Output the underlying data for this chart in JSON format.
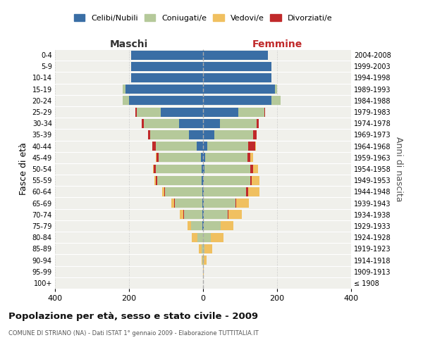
{
  "age_groups": [
    "100+",
    "95-99",
    "90-94",
    "85-89",
    "80-84",
    "75-79",
    "70-74",
    "65-69",
    "60-64",
    "55-59",
    "50-54",
    "45-49",
    "40-44",
    "35-39",
    "30-34",
    "25-29",
    "20-24",
    "15-19",
    "10-14",
    "5-9",
    "0-4"
  ],
  "birth_years": [
    "≤ 1908",
    "1909-1913",
    "1914-1918",
    "1919-1923",
    "1924-1928",
    "1929-1933",
    "1934-1938",
    "1939-1943",
    "1944-1948",
    "1949-1953",
    "1954-1958",
    "1959-1963",
    "1964-1968",
    "1969-1973",
    "1974-1978",
    "1979-1983",
    "1984-1988",
    "1989-1993",
    "1994-1998",
    "1999-2003",
    "2004-2008"
  ],
  "maschi": {
    "celibi": [
      0,
      0,
      0,
      0,
      0,
      2,
      2,
      2,
      2,
      3,
      3,
      5,
      18,
      38,
      65,
      115,
      200,
      210,
      195,
      195,
      195
    ],
    "coniugati": [
      0,
      0,
      2,
      4,
      15,
      30,
      50,
      75,
      100,
      120,
      125,
      115,
      110,
      105,
      95,
      65,
      18,
      8,
      0,
      0,
      0
    ],
    "vedovi": [
      0,
      0,
      2,
      8,
      15,
      10,
      8,
      6,
      5,
      3,
      2,
      1,
      0,
      0,
      0,
      0,
      0,
      0,
      0,
      0,
      0
    ],
    "divorziati": [
      0,
      0,
      0,
      0,
      0,
      0,
      2,
      2,
      3,
      5,
      5,
      6,
      10,
      5,
      5,
      2,
      0,
      0,
      0,
      0,
      0
    ]
  },
  "femmine": {
    "nubili": [
      0,
      0,
      0,
      0,
      0,
      2,
      2,
      2,
      2,
      2,
      3,
      5,
      12,
      30,
      45,
      95,
      185,
      195,
      185,
      185,
      175
    ],
    "coniugate": [
      0,
      0,
      2,
      4,
      20,
      45,
      65,
      85,
      115,
      125,
      125,
      115,
      110,
      105,
      100,
      70,
      25,
      5,
      0,
      0,
      0
    ],
    "vedove": [
      0,
      2,
      8,
      20,
      35,
      35,
      35,
      35,
      30,
      20,
      12,
      8,
      3,
      0,
      0,
      0,
      0,
      0,
      0,
      0,
      0
    ],
    "divorziate": [
      0,
      0,
      0,
      0,
      0,
      0,
      2,
      2,
      5,
      5,
      8,
      8,
      18,
      10,
      6,
      2,
      0,
      0,
      0,
      0,
      0
    ]
  },
  "colors": {
    "celibi_nubili": "#3a6ea5",
    "coniugati": "#b5c99a",
    "vedovi": "#f0c060",
    "divorziati": "#c0292a"
  },
  "xlim": 400,
  "title": "Popolazione per età, sesso e stato civile - 2009",
  "subtitle": "COMUNE DI STRIANO (NA) - Dati ISTAT 1° gennaio 2009 - Elaborazione TUTTITALIA.IT",
  "ylabel_left": "Fasce di età",
  "ylabel_right": "Anni di nascita",
  "xlabel_left": "Maschi",
  "xlabel_right": "Femmine",
  "bg_color": "#f0f0eb",
  "grid_color": "#cccccc"
}
